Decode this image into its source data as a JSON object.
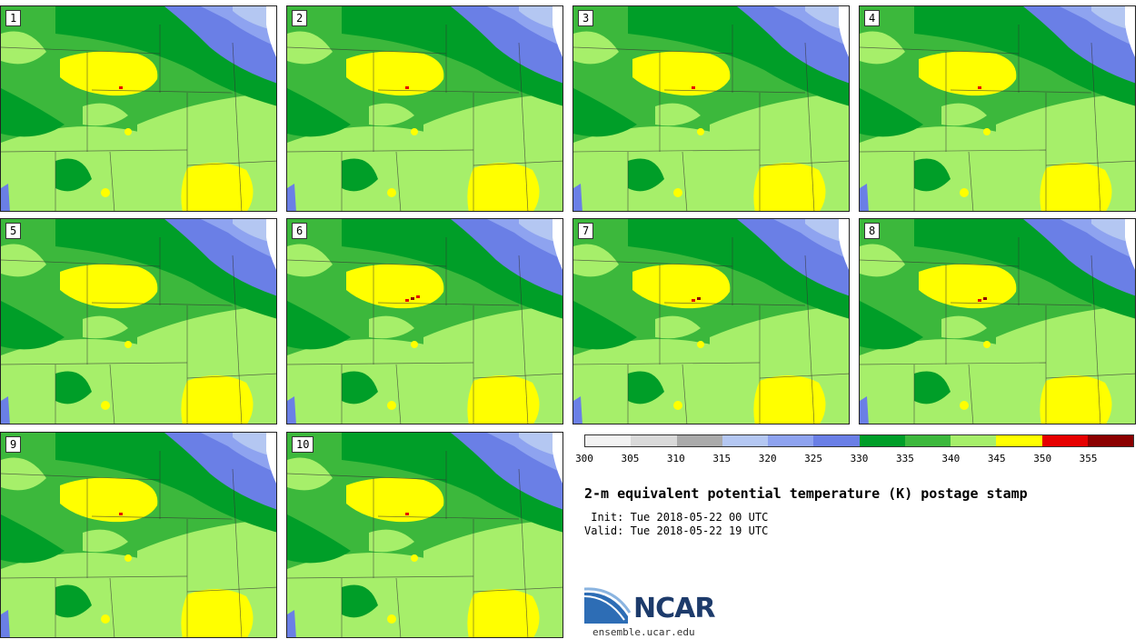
{
  "panels": [
    {
      "label": "1",
      "hot_spots": 1
    },
    {
      "label": "2",
      "hot_spots": 1
    },
    {
      "label": "3",
      "hot_spots": 1
    },
    {
      "label": "4",
      "hot_spots": 1
    },
    {
      "label": "5",
      "hot_spots": 0
    },
    {
      "label": "6",
      "hot_spots": 3
    },
    {
      "label": "7",
      "hot_spots": 2
    },
    {
      "label": "8",
      "hot_spots": 2
    },
    {
      "label": "9",
      "hot_spots": 1
    },
    {
      "label": "10",
      "hot_spots": 1
    }
  ],
  "colorbar": {
    "colors": [
      "#f2f2f2",
      "#d9d9d9",
      "#aaaaaa",
      "#b4c7f2",
      "#8ea3f0",
      "#6a7fe6",
      "#009e28",
      "#3cb83c",
      "#a6ef6a",
      "#ffff00",
      "#e60000",
      "#8b0000"
    ],
    "tick_labels": [
      "300",
      "305",
      "310",
      "315",
      "320",
      "325",
      "330",
      "335",
      "340",
      "345",
      "350",
      "355"
    ]
  },
  "title": "2-m equivalent potential temperature (K) postage stamp",
  "init_line": " Init: Tue 2018-05-22 00 UTC",
  "valid_line": "Valid: Tue 2018-05-22 19 UTC",
  "logo": {
    "text": "NCAR",
    "url": "ensemble.ucar.edu",
    "color": "#1d3b6b"
  }
}
